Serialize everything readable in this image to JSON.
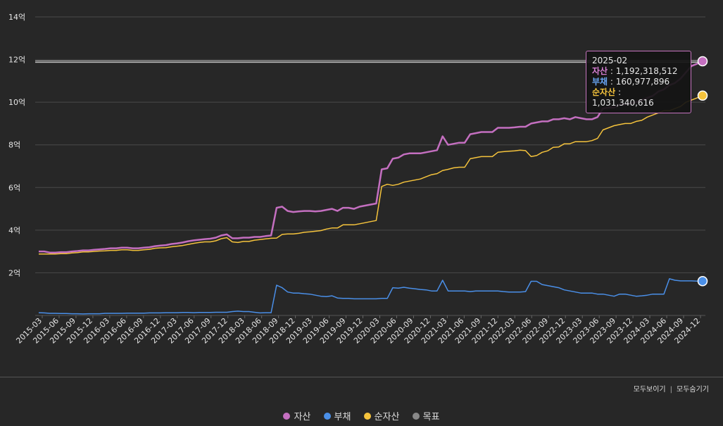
{
  "chart_data": {
    "type": "line",
    "y_tick_labels": [
      "14억",
      "12억",
      "10억",
      "8억",
      "6억",
      "4억",
      "2억"
    ],
    "y_tick_values": [
      14,
      12,
      10,
      8,
      6,
      4,
      2
    ],
    "ylim": [
      0,
      14
    ],
    "y_unit_note": "억 (100,000,000 KRW)",
    "x_tick_labels": [
      "2015-03",
      "2015-06",
      "2015-09",
      "2015-12",
      "2016-03",
      "2016-06",
      "2016-09",
      "2016-12",
      "2017-03",
      "2017-06",
      "2017-09",
      "2017-12",
      "2018-03",
      "2018-06",
      "2018-09",
      "2018-12",
      "2019-03",
      "2019-06",
      "2019-09",
      "2019-12",
      "2020-03",
      "2020-06",
      "2020-09",
      "2020-12",
      "2021-03",
      "2021-06",
      "2021-09",
      "2021-12",
      "2022-03",
      "2022-06",
      "2022-09",
      "2022-12",
      "2023-03",
      "2023-06",
      "2023-09",
      "2023-12",
      "2024-03",
      "2024-06",
      "2024-09",
      "2024-12"
    ],
    "x_start": "2015-03",
    "target_line_value": 11.9,
    "series": [
      {
        "name": "자산",
        "color": "#c46fc0",
        "values": [
          3.0,
          3.0,
          2.95,
          2.95,
          2.97,
          2.97,
          3.0,
          3.02,
          3.05,
          3.05,
          3.08,
          3.1,
          3.12,
          3.15,
          3.15,
          3.18,
          3.18,
          3.15,
          3.15,
          3.18,
          3.2,
          3.25,
          3.28,
          3.3,
          3.35,
          3.38,
          3.42,
          3.48,
          3.52,
          3.55,
          3.58,
          3.6,
          3.65,
          3.75,
          3.8,
          3.62,
          3.62,
          3.65,
          3.65,
          3.68,
          3.68,
          3.72,
          3.75,
          5.05,
          5.1,
          4.9,
          4.85,
          4.88,
          4.9,
          4.9,
          4.88,
          4.9,
          4.95,
          5.0,
          4.9,
          5.05,
          5.05,
          5.0,
          5.1,
          5.15,
          5.2,
          5.25,
          6.85,
          6.9,
          7.35,
          7.4,
          7.55,
          7.6,
          7.6,
          7.6,
          7.65,
          7.7,
          7.75,
          8.4,
          8.0,
          8.05,
          8.1,
          8.1,
          8.5,
          8.55,
          8.6,
          8.6,
          8.6,
          8.8,
          8.8,
          8.8,
          8.82,
          8.85,
          8.85,
          9.0,
          9.05,
          9.1,
          9.1,
          9.2,
          9.2,
          9.25,
          9.2,
          9.3,
          9.25,
          9.2,
          9.2,
          9.3,
          9.7,
          9.75,
          9.75,
          9.9,
          9.9,
          9.95,
          10.0,
          10.1,
          10.2,
          10.3,
          10.5,
          10.6,
          10.8,
          10.9,
          11.1,
          11.4,
          11.7,
          11.8,
          11.92
        ]
      },
      {
        "name": "부채",
        "color": "#4a8fe8",
        "values": [
          0.13,
          0.12,
          0.1,
          0.1,
          0.09,
          0.09,
          0.08,
          0.08,
          0.07,
          0.08,
          0.08,
          0.08,
          0.1,
          0.1,
          0.1,
          0.1,
          0.11,
          0.11,
          0.11,
          0.11,
          0.12,
          0.12,
          0.12,
          0.13,
          0.13,
          0.13,
          0.14,
          0.14,
          0.13,
          0.14,
          0.14,
          0.14,
          0.15,
          0.15,
          0.15,
          0.18,
          0.2,
          0.18,
          0.18,
          0.15,
          0.12,
          0.13,
          0.13,
          1.42,
          1.3,
          1.1,
          1.05,
          1.05,
          1.02,
          1.0,
          0.95,
          0.9,
          0.88,
          0.92,
          0.82,
          0.8,
          0.8,
          0.78,
          0.78,
          0.78,
          0.78,
          0.78,
          0.8,
          0.8,
          1.3,
          1.28,
          1.32,
          1.28,
          1.25,
          1.22,
          1.2,
          1.15,
          1.15,
          1.65,
          1.15,
          1.15,
          1.15,
          1.15,
          1.12,
          1.15,
          1.15,
          1.15,
          1.15,
          1.15,
          1.12,
          1.1,
          1.1,
          1.1,
          1.12,
          1.6,
          1.6,
          1.45,
          1.4,
          1.35,
          1.3,
          1.2,
          1.15,
          1.1,
          1.05,
          1.05,
          1.05,
          1.0,
          1.0,
          0.95,
          0.9,
          1.0,
          1.0,
          0.95,
          0.9,
          0.92,
          0.95,
          1.0,
          1.0,
          1.0,
          1.72,
          1.65,
          1.62,
          1.62,
          1.62,
          1.61,
          1.61
        ]
      },
      {
        "name": "순자산",
        "color": "#f5c33c",
        "values": [
          2.88,
          2.88,
          2.88,
          2.88,
          2.9,
          2.9,
          2.93,
          2.95,
          2.98,
          2.98,
          3.0,
          3.02,
          3.03,
          3.05,
          3.05,
          3.08,
          3.08,
          3.05,
          3.05,
          3.08,
          3.1,
          3.15,
          3.17,
          3.18,
          3.22,
          3.25,
          3.28,
          3.33,
          3.38,
          3.42,
          3.45,
          3.45,
          3.5,
          3.6,
          3.65,
          3.45,
          3.42,
          3.47,
          3.47,
          3.53,
          3.56,
          3.59,
          3.62,
          3.63,
          3.8,
          3.82,
          3.82,
          3.85,
          3.9,
          3.92,
          3.95,
          3.98,
          4.05,
          4.1,
          4.1,
          4.25,
          4.25,
          4.25,
          4.3,
          4.35,
          4.4,
          4.45,
          6.05,
          6.15,
          6.1,
          6.15,
          6.25,
          6.3,
          6.35,
          6.4,
          6.5,
          6.6,
          6.65,
          6.8,
          6.85,
          6.92,
          6.95,
          6.95,
          7.35,
          7.4,
          7.45,
          7.45,
          7.45,
          7.65,
          7.68,
          7.7,
          7.72,
          7.75,
          7.73,
          7.45,
          7.5,
          7.65,
          7.72,
          7.88,
          7.9,
          8.05,
          8.05,
          8.15,
          8.15,
          8.15,
          8.2,
          8.3,
          8.7,
          8.8,
          8.9,
          8.95,
          9.0,
          9.0,
          9.1,
          9.15,
          9.3,
          9.4,
          9.5,
          9.6,
          9.6,
          9.7,
          9.8,
          10.0,
          10.1,
          10.2,
          10.31
        ]
      }
    ],
    "tooltip": {
      "date": "2025-02",
      "rows": [
        {
          "name": "자산",
          "value": "1,192,318,512",
          "color": "#d77ed3"
        },
        {
          "name": "부채",
          "value": "160,977,896",
          "color": "#6aa6f5"
        },
        {
          "name": "순자산",
          "value": "1,031,340,616",
          "color": "#f5c33c"
        }
      ]
    },
    "legend": [
      {
        "name": "자산",
        "color": "#c46fc0"
      },
      {
        "name": "부채",
        "color": "#4a8fe8"
      },
      {
        "name": "순자산",
        "color": "#f5c33c"
      },
      {
        "name": "목표",
        "color": "#888888"
      }
    ]
  },
  "controls": {
    "show_all": "모두보이기",
    "hide_all": "모두숨기기",
    "separator": "|"
  }
}
